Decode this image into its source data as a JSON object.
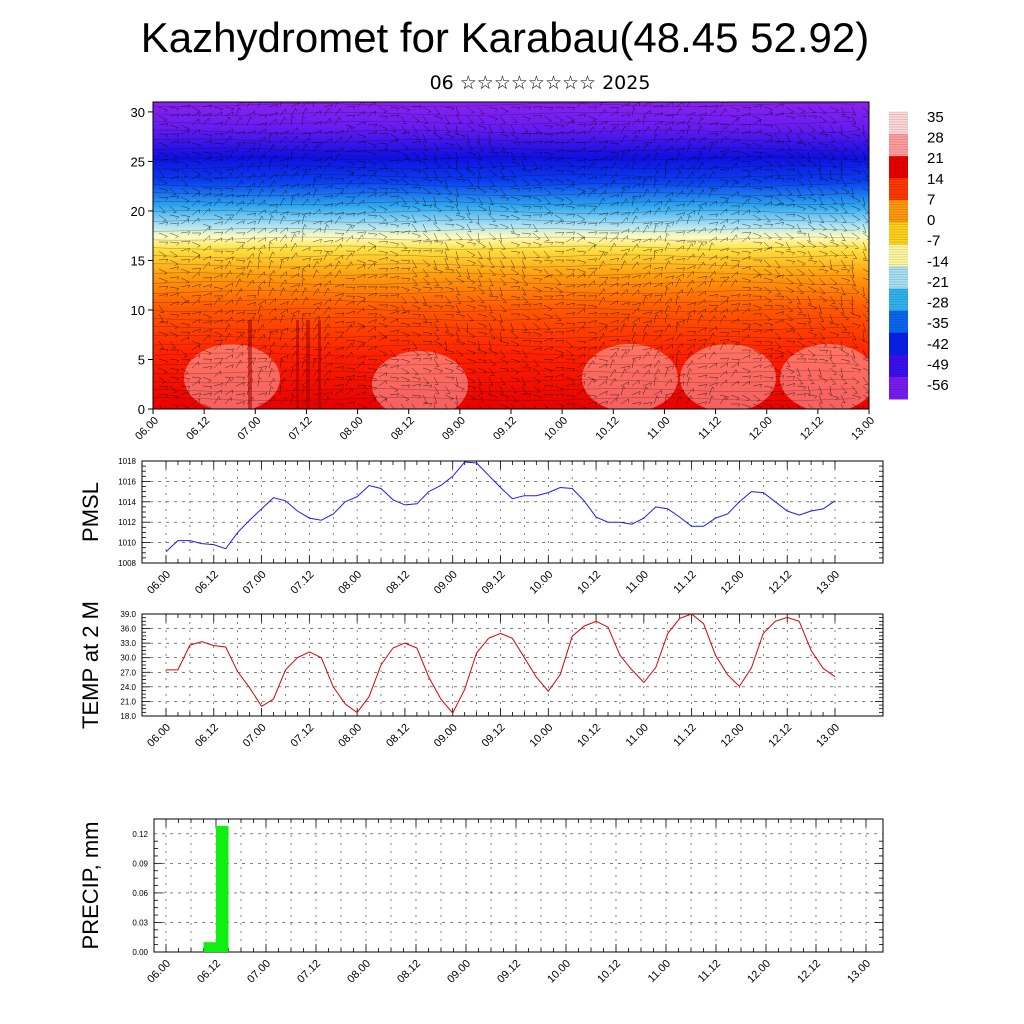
{
  "header": {
    "title": "Kazhydromet for Karabau(48.45 52.92)",
    "subtitle": "06 ☆☆☆☆☆☆☆☆ 2025"
  },
  "colors": {
    "pmsl_line": "#1a1aff",
    "temp_line": "#e00000",
    "precip_bar": "#11ee11",
    "colorbar": [
      "#7a1cf0",
      "#3a10f0",
      "#0820e8",
      "#0c66f0",
      "#30b4ef",
      "#a8e0f4",
      "#fff8a0",
      "#ffd21e",
      "#ff9a10",
      "#ff3a00",
      "#e80000",
      "#ff9e9e",
      "#ffd8d8"
    ]
  },
  "chart_data": [
    {
      "type": "heatmap",
      "title": "",
      "x_ticks": [
        "06.00",
        "06.12",
        "07.00",
        "07.12",
        "08.00",
        "08.12",
        "09.00",
        "09.12",
        "10.00",
        "10.12",
        "11.00",
        "11.12",
        "12.00",
        "12.12",
        "13.00"
      ],
      "y_ticks": [
        "0",
        "5",
        "10",
        "15",
        "20",
        "25",
        "30"
      ],
      "ylim": [
        0,
        31
      ],
      "colorbar_labels": [
        "35",
        "28",
        "21",
        "14",
        "7",
        "0",
        "-7",
        "-14",
        "-21",
        "-28",
        "-35",
        "-42",
        "-49",
        "-56"
      ],
      "overlay": "wind barbs"
    },
    {
      "type": "line",
      "ylabel": "PMSL",
      "x_ticks": [
        "06.00",
        "06.12",
        "07.00",
        "07.12",
        "08.00",
        "08.12",
        "09.00",
        "09.12",
        "10.00",
        "10.12",
        "11.00",
        "11.12",
        "12.00",
        "12.12",
        "13.00"
      ],
      "y_ticks": [
        "1008",
        "1010",
        "1012",
        "1014",
        "1016",
        "1018"
      ],
      "ylim": [
        1008,
        1018
      ],
      "x_step_hours": 3,
      "values": [
        1009.1,
        1010.2,
        1010.2,
        1009.9,
        1009.8,
        1009.4,
        1011.0,
        1012.2,
        1013.3,
        1014.4,
        1014.1,
        1013.1,
        1012.4,
        1012.2,
        1012.8,
        1014.0,
        1014.5,
        1015.6,
        1015.3,
        1014.2,
        1013.7,
        1013.8,
        1015.0,
        1015.6,
        1016.5,
        1017.9,
        1017.8,
        1016.6,
        1015.4,
        1014.3,
        1014.6,
        1014.6,
        1014.9,
        1015.4,
        1015.3,
        1014.1,
        1012.5,
        1012.0,
        1012.0,
        1011.8,
        1012.4,
        1013.5,
        1013.3,
        1012.5,
        1011.6,
        1011.6,
        1012.4,
        1012.8,
        1014.0,
        1015.0,
        1014.9,
        1014.0,
        1013.1,
        1012.7,
        1013.1,
        1013.3,
        1014.1
      ]
    },
    {
      "type": "line",
      "ylabel": "TEMP at 2 M",
      "x_ticks": [
        "06.00",
        "06.12",
        "07.00",
        "07.12",
        "08.00",
        "08.12",
        "09.00",
        "09.12",
        "10.00",
        "10.12",
        "11.00",
        "11.12",
        "12.00",
        "12.12",
        "13.00"
      ],
      "y_ticks": [
        "18.0",
        "21.0",
        "24.0",
        "27.0",
        "30.0",
        "33.0",
        "36.0",
        "39.0"
      ],
      "ylim": [
        18,
        39
      ],
      "x_step_hours": 3,
      "values": [
        27.5,
        27.5,
        32.6,
        33.3,
        32.5,
        32.2,
        27.1,
        23.8,
        20.0,
        21.5,
        27.5,
        30.0,
        31.2,
        30.0,
        24.0,
        20.5,
        18.7,
        22.0,
        28.5,
        32.0,
        33.0,
        32.0,
        26.0,
        21.5,
        18.6,
        23.5,
        31.0,
        34.0,
        35.0,
        34.0,
        30.0,
        26.0,
        23.1,
        26.5,
        34.4,
        36.5,
        37.5,
        36.3,
        30.5,
        27.5,
        24.9,
        28.0,
        35.0,
        38.1,
        39.0,
        37.0,
        30.5,
        26.5,
        24.1,
        27.9,
        35.0,
        37.5,
        38.3,
        37.5,
        31.5,
        27.8,
        26.1
      ]
    },
    {
      "type": "bar",
      "ylabel": "PRECIP, mm",
      "x_ticks": [
        "06.00",
        "06.12",
        "07.00",
        "07.12",
        "08.00",
        "08.12",
        "09.00",
        "09.12",
        "10.00",
        "10.12",
        "11.00",
        "11.12",
        "12.00",
        "12.12",
        "13.00"
      ],
      "y_ticks": [
        "0.00",
        "0.03",
        "0.06",
        "0.09",
        "0.12"
      ],
      "ylim": [
        0,
        0.135
      ],
      "bars": [
        {
          "start_hours": 9,
          "end_hours": 12,
          "value": 0.01
        },
        {
          "start_hours": 12,
          "end_hours": 15,
          "value": 0.128
        }
      ]
    }
  ]
}
